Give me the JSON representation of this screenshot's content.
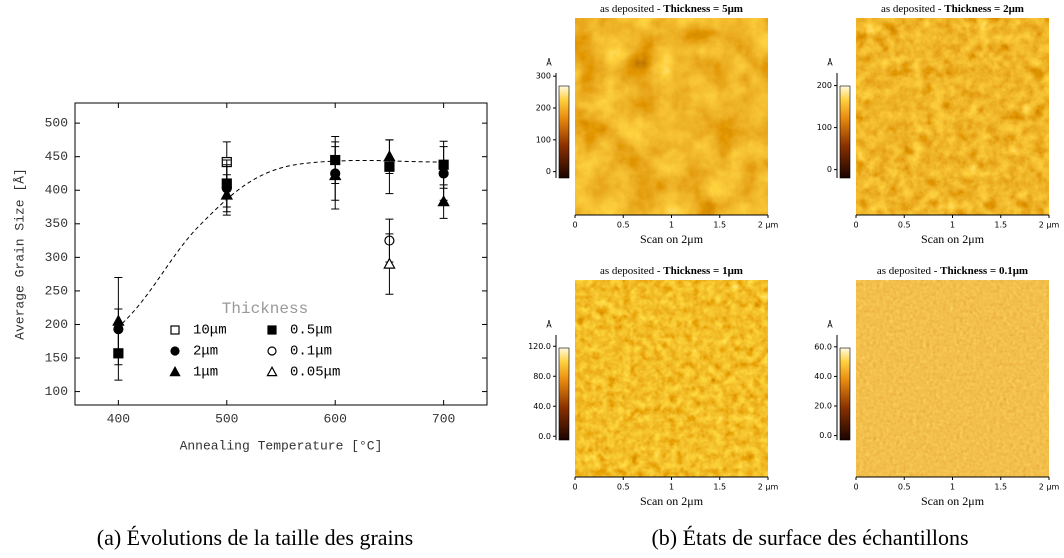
{
  "chart_data": [
    {
      "type": "scatter",
      "xlabel": "Annealing Temperature [°C]",
      "ylabel": "Average Grain Size [Å]",
      "xlim": [
        360,
        740
      ],
      "ylim": [
        80,
        530
      ],
      "xticks": [
        400,
        500,
        600,
        700
      ],
      "yticks": [
        100,
        150,
        200,
        250,
        300,
        350,
        400,
        450,
        500
      ],
      "legend_title": "Thickness",
      "caption": "(a) Évolutions de la taille des grains",
      "series": [
        {
          "name": "10μm",
          "marker": "square-open",
          "color": "#000000",
          "x": [
            500
          ],
          "values": [
            442
          ],
          "errors": [
            30
          ]
        },
        {
          "name": "2μm",
          "marker": "circle",
          "color": "#000000",
          "x": [
            400,
            500,
            600,
            700
          ],
          "values": [
            193,
            403,
            425,
            425
          ],
          "errors": [
            30,
            35,
            40,
            40
          ]
        },
        {
          "name": "1μm",
          "marker": "triangle",
          "color": "#000000",
          "x": [
            400,
            500,
            600,
            650,
            700
          ],
          "values": [
            205,
            393,
            422,
            450,
            383
          ],
          "errors": [
            65,
            30,
            50,
            25,
            25
          ]
        },
        {
          "name": "0.5μm",
          "marker": "square",
          "color": "#000000",
          "x": [
            400,
            500,
            600,
            650,
            700
          ],
          "values": [
            157,
            410,
            445,
            435,
            438
          ],
          "errors": [
            40,
            35,
            35,
            40,
            35
          ]
        },
        {
          "name": "0.1μm",
          "marker": "circle-open",
          "color": "#000000",
          "x": [
            650
          ],
          "values": [
            325
          ],
          "errors": [
            32
          ]
        },
        {
          "name": "0.05μm",
          "marker": "triangle-open",
          "color": "#000000",
          "x": [
            650
          ],
          "values": [
            290
          ],
          "errors": [
            45
          ]
        }
      ]
    },
    {
      "type": "image",
      "title": [
        "as deposited - ",
        "Thickness = 5μm"
      ],
      "xlabel": "Scan on 2μm",
      "unit": "Å",
      "xlim": [
        0,
        2
      ],
      "xticks": [
        0,
        0.5,
        1,
        1.5,
        {
          "value": 2,
          "label": "2 μm"
        }
      ],
      "clim": [
        -20,
        310
      ],
      "cticks": [
        0,
        100,
        200,
        300
      ]
    },
    {
      "type": "image",
      "title": [
        "as deposited - ",
        "Thickness = 2μm"
      ],
      "xlabel": "Scan on 2μm",
      "unit": "Å",
      "xlim": [
        0,
        2
      ],
      "xticks": [
        0,
        0.5,
        1,
        1.5,
        {
          "value": 2,
          "label": "2 μm"
        }
      ],
      "clim": [
        -20,
        230
      ],
      "cticks": [
        0,
        100,
        200
      ]
    },
    {
      "type": "image",
      "title": [
        "as deposited - ",
        "Thickness = 1μm"
      ],
      "xlabel": "Scan on 2μm",
      "unit": "Å",
      "xlim": [
        0,
        2
      ],
      "xticks": [
        0,
        0.5,
        1,
        1.5,
        {
          "value": 2,
          "label": "2 μm"
        }
      ],
      "clim": [
        -5,
        135
      ],
      "cticks": [
        {
          "value": 0,
          "label": "0.0"
        },
        {
          "value": 40,
          "label": "40.0"
        },
        {
          "value": 80,
          "label": "80.0"
        },
        {
          "value": 120,
          "label": "120.0"
        }
      ]
    },
    {
      "type": "image",
      "title": [
        "as deposited - ",
        "Thickness = 0.1μm"
      ],
      "xlabel": "Scan on 2μm",
      "unit": "Å",
      "xlim": [
        0,
        2
      ],
      "xticks": [
        0,
        0.5,
        1,
        1.5,
        {
          "value": 2,
          "label": "2 μm"
        }
      ],
      "clim": [
        -3,
        68
      ],
      "cticks": [
        {
          "value": 0,
          "label": "0.0"
        },
        {
          "value": 20,
          "label": "20.0"
        },
        {
          "value": 40,
          "label": "40.0"
        },
        {
          "value": 60,
          "label": "60.0"
        }
      ],
      "caption": "(b) États de surface des échantillons"
    }
  ]
}
